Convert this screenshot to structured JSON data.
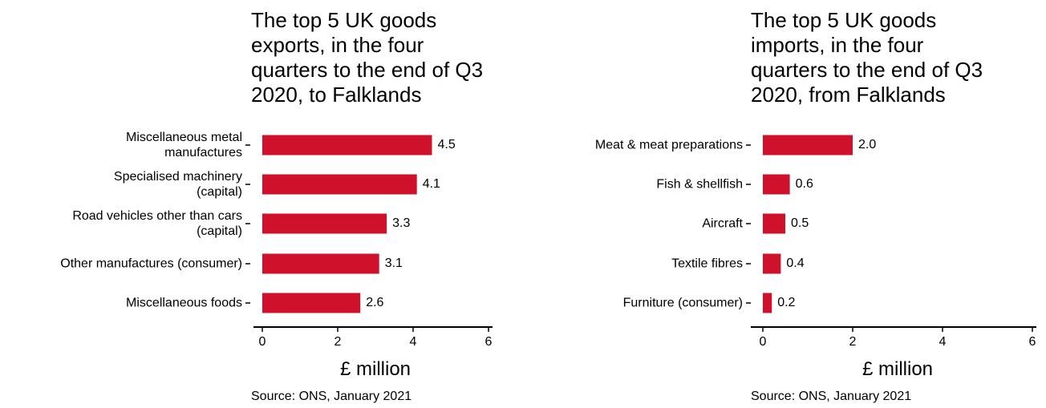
{
  "chart_data": [
    {
      "type": "bar",
      "orientation": "horizontal",
      "title": "The top 5 UK goods\nexports, in the four\nquarters to the end of Q3\n2020, to Falklands",
      "categories": [
        "Miscellaneous metal\nmanufactures",
        "Specialised machinery\n(capital)",
        "Road vehicles other than cars\n(capital)",
        "Other manufactures (consumer)",
        "Miscellaneous foods"
      ],
      "values": [
        4.5,
        4.1,
        3.3,
        3.1,
        2.6
      ],
      "color": "#d0112b",
      "xlim": [
        0,
        6
      ],
      "xticks": [
        0,
        2,
        4,
        6
      ],
      "xlabel": "£ million",
      "caption": "Source: ONS, January 2021"
    },
    {
      "type": "bar",
      "orientation": "horizontal",
      "title": "The top 5 UK goods\nimports, in the four\nquarters to the end of Q3\n2020, from Falklands",
      "categories": [
        "Meat & meat preparations",
        "Fish & shellfish",
        "Aircraft",
        "Textile fibres",
        "Furniture (consumer)"
      ],
      "values": [
        2,
        0.6,
        0.5,
        0.4,
        0.2
      ],
      "value_labels": [
        "2.0",
        "0.6",
        "0.5",
        "0.4",
        "0.2"
      ],
      "color": "#d0112b",
      "xlim": [
        0,
        6
      ],
      "xticks": [
        0,
        2,
        4,
        6
      ],
      "xlabel": "£ million",
      "caption": "Source: ONS, January 2021"
    }
  ]
}
